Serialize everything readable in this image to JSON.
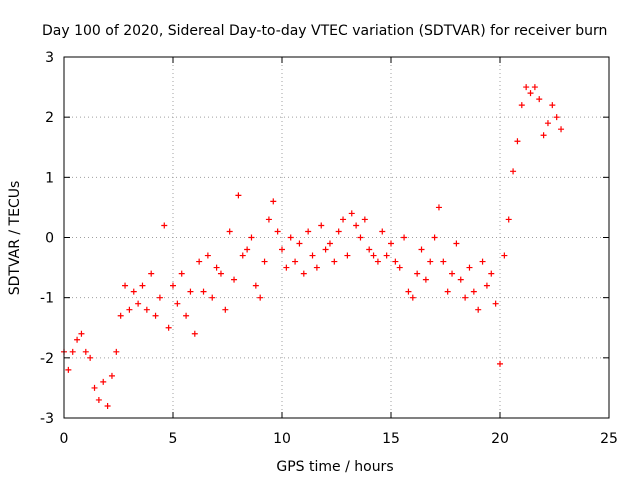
{
  "chart_data": {
    "type": "scatter",
    "title": "Day 100 of 2020, Sidereal Day-to-day VTEC variation (SDTVAR) for receiver burn",
    "xlabel": "GPS time / hours",
    "ylabel": "SDTVAR / TECUs",
    "xlim": [
      0,
      25
    ],
    "ylim": [
      -3,
      3
    ],
    "xticks": [
      "0",
      "5",
      "10",
      "15",
      "20",
      "25"
    ],
    "yticks": [
      "-3",
      "-2",
      "-1",
      "0",
      "1",
      "2",
      "3"
    ],
    "grid": true,
    "marker": "+",
    "color": "#ff0000",
    "series": [
      {
        "name": "SDTVAR",
        "x": [
          0.0,
          0.2,
          0.4,
          0.6,
          0.8,
          1.0,
          1.2,
          1.4,
          1.6,
          1.8,
          2.0,
          2.2,
          2.4,
          2.6,
          2.8,
          3.0,
          3.2,
          3.4,
          3.6,
          3.8,
          4.0,
          4.2,
          4.4,
          4.6,
          4.8,
          5.0,
          5.2,
          5.4,
          5.6,
          5.8,
          6.0,
          6.2,
          6.4,
          6.6,
          6.8,
          7.0,
          7.2,
          7.4,
          7.6,
          7.8,
          8.0,
          8.2,
          8.4,
          8.6,
          8.8,
          9.0,
          9.2,
          9.4,
          9.6,
          9.8,
          10.0,
          10.2,
          10.4,
          10.6,
          10.8,
          11.0,
          11.2,
          11.4,
          11.6,
          11.8,
          12.0,
          12.2,
          12.4,
          12.6,
          12.8,
          13.0,
          13.2,
          13.4,
          13.6,
          13.8,
          14.0,
          14.2,
          14.4,
          14.6,
          14.8,
          15.0,
          15.2,
          15.4,
          15.6,
          15.8,
          16.0,
          16.2,
          16.4,
          16.6,
          16.8,
          17.0,
          17.2,
          17.4,
          17.6,
          17.8,
          18.0,
          18.2,
          18.4,
          18.6,
          18.8,
          19.0,
          19.2,
          19.4,
          19.6,
          19.8,
          20.0,
          20.2,
          20.4,
          20.6,
          20.8,
          21.0,
          21.2,
          21.4,
          21.6,
          21.8,
          22.0,
          22.2,
          22.4,
          22.6,
          22.8
        ],
        "y": [
          -1.9,
          -2.2,
          -1.9,
          -1.7,
          -1.6,
          -1.9,
          -2.0,
          -2.5,
          -2.7,
          -2.4,
          -2.8,
          -2.3,
          -1.9,
          -1.3,
          -0.8,
          -1.2,
          -0.9,
          -1.1,
          -0.8,
          -1.2,
          -0.6,
          -1.3,
          -1.0,
          0.2,
          -1.5,
          -0.8,
          -1.1,
          -0.6,
          -1.3,
          -0.9,
          -1.6,
          -0.4,
          -0.9,
          -0.3,
          -1.0,
          -0.5,
          -0.6,
          -1.2,
          0.1,
          -0.7,
          0.7,
          -0.3,
          -0.2,
          0.0,
          -0.8,
          -1.0,
          -0.4,
          0.3,
          0.6,
          0.1,
          -0.2,
          -0.5,
          0.0,
          -0.4,
          -0.1,
          -0.6,
          0.1,
          -0.3,
          -0.5,
          0.2,
          -0.2,
          -0.1,
          -0.4,
          0.1,
          0.3,
          -0.3,
          0.4,
          0.2,
          0.0,
          0.3,
          -0.2,
          -0.3,
          -0.4,
          0.1,
          -0.3,
          -0.1,
          -0.4,
          -0.5,
          0.0,
          -0.9,
          -1.0,
          -0.6,
          -0.2,
          -0.7,
          -0.4,
          0.0,
          0.5,
          -0.4,
          -0.9,
          -0.6,
          -0.1,
          -0.7,
          -1.0,
          -0.5,
          -0.9,
          -1.2,
          -0.4,
          -0.8,
          -0.6,
          -1.1,
          -2.1,
          -0.3,
          0.3,
          1.1,
          1.6,
          2.2,
          2.5,
          2.4,
          2.5,
          2.3,
          1.7,
          1.9,
          2.2,
          2.0,
          1.8
        ]
      }
    ]
  }
}
